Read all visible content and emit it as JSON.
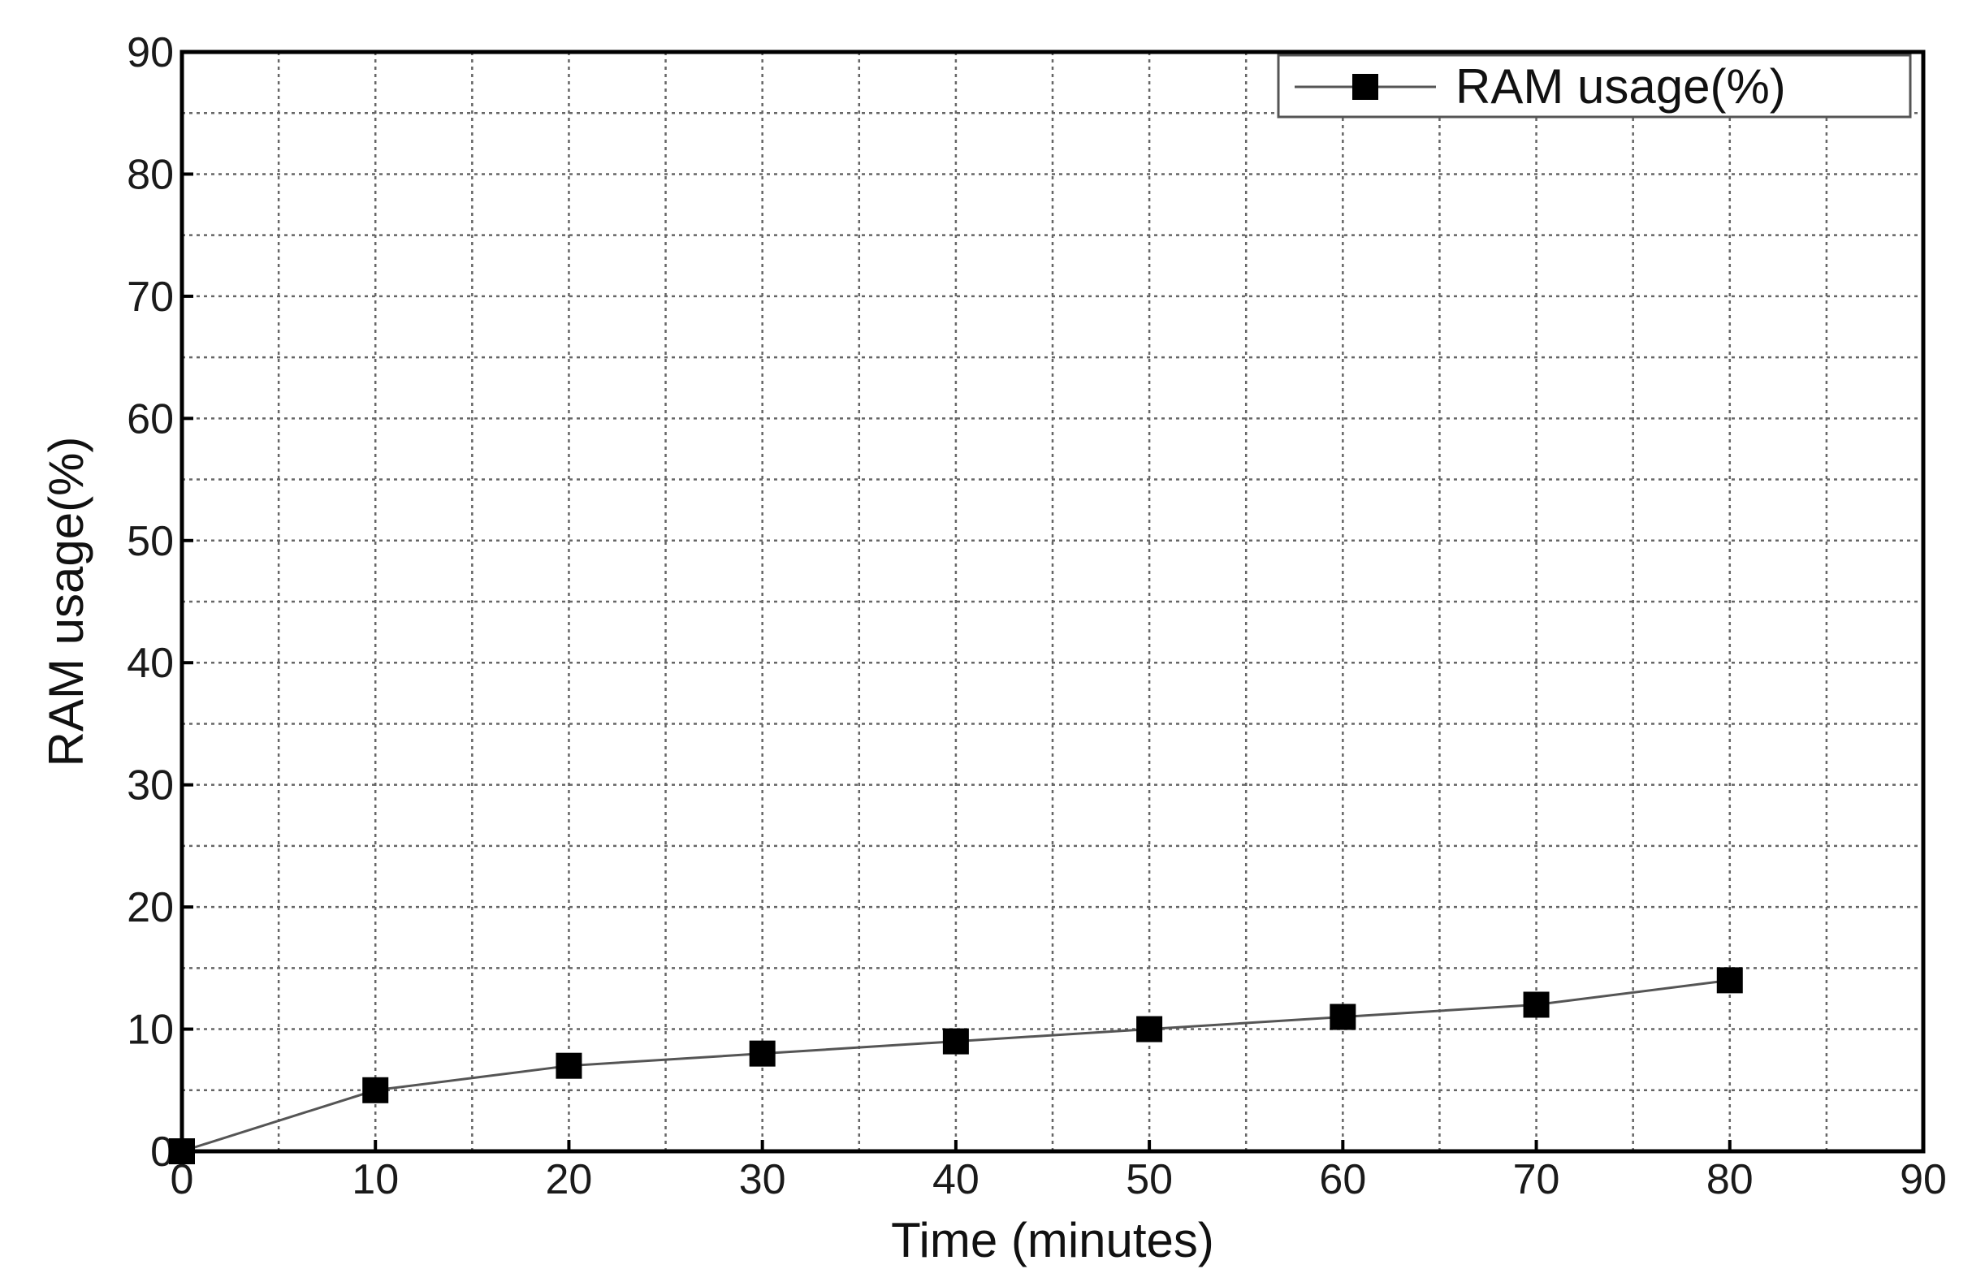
{
  "chart_data": {
    "type": "line",
    "xlabel": "Time (minutes)",
    "ylabel": "RAM usage(%)",
    "xlim": [
      0,
      90
    ],
    "ylim": [
      0,
      90
    ],
    "x_ticks": [
      0,
      10,
      20,
      30,
      40,
      50,
      60,
      70,
      80,
      90
    ],
    "y_ticks": [
      0,
      10,
      20,
      30,
      40,
      50,
      60,
      70,
      80,
      90
    ],
    "x_minor_step": 5,
    "y_minor_step": 5,
    "grid": true,
    "legend_position": "top-right",
    "series": [
      {
        "name": "RAM usage(%)",
        "marker": "square",
        "x": [
          0,
          10,
          20,
          30,
          40,
          50,
          60,
          70,
          80
        ],
        "y": [
          0,
          5,
          7,
          8,
          9,
          10,
          11,
          12,
          14
        ]
      }
    ]
  },
  "colors": {
    "line": "#555555",
    "marker": "#000000",
    "axis": "#000000",
    "grid": "#666666"
  }
}
